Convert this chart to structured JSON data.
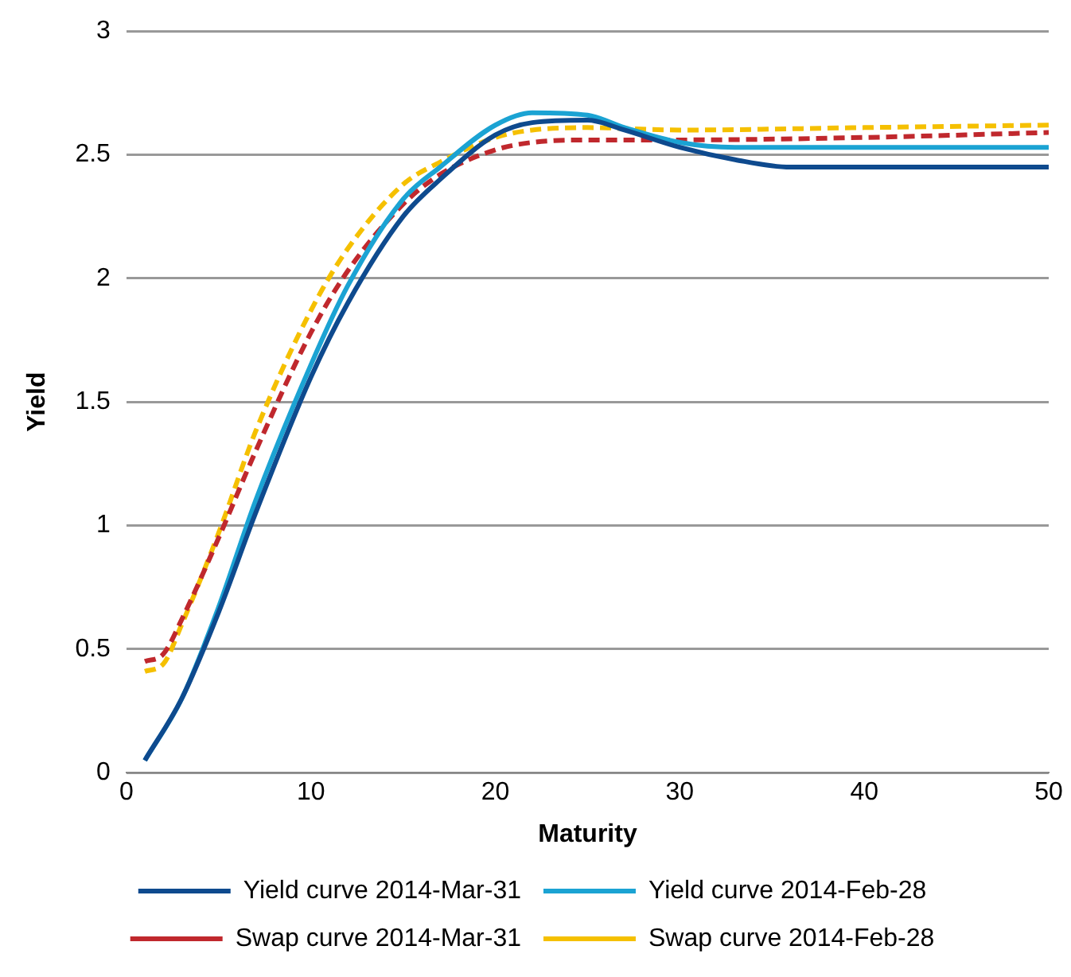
{
  "chart_data": {
    "type": "line",
    "xlabel": "Maturity",
    "ylabel": "Yield",
    "xlim": [
      0,
      50
    ],
    "xticks": [
      0,
      10,
      20,
      30,
      40,
      50
    ],
    "ylim": [
      0,
      3
    ],
    "yticks": [
      0,
      0.5,
      1,
      1.5,
      2,
      2.5,
      3
    ],
    "grid": "y",
    "legend": "bottom",
    "marker": "none",
    "series": [
      {
        "name": "Yield curve 2014-Mar-31",
        "color": "#0e4a8e",
        "line_style": "solid",
        "x": [
          1,
          3,
          5,
          7,
          10,
          12,
          15,
          17,
          20,
          22,
          25,
          27,
          30,
          33,
          36,
          40,
          45,
          50
        ],
        "values": [
          0.05,
          0.3,
          0.65,
          1.05,
          1.6,
          1.9,
          2.25,
          2.4,
          2.58,
          2.63,
          2.64,
          2.6,
          2.53,
          2.48,
          2.45,
          2.45,
          2.45,
          2.45
        ]
      },
      {
        "name": "Yield curve 2014-Feb-28",
        "color": "#1ba3d3",
        "line_style": "solid",
        "x": [
          1,
          3,
          5,
          7,
          10,
          12,
          15,
          17,
          20,
          22,
          25,
          27,
          30,
          33,
          40,
          50
        ],
        "values": [
          0.05,
          0.3,
          0.67,
          1.1,
          1.65,
          1.97,
          2.32,
          2.45,
          2.62,
          2.67,
          2.66,
          2.61,
          2.55,
          2.53,
          2.53,
          2.53
        ]
      },
      {
        "name": "Swap curve 2014-Mar-31",
        "color": "#c0282d",
        "line_style": "dashed",
        "x": [
          1,
          2,
          3,
          5,
          7,
          10,
          12,
          15,
          17,
          20,
          22,
          25,
          30,
          40,
          50
        ],
        "values": [
          0.45,
          0.48,
          0.62,
          0.95,
          1.3,
          1.78,
          2.03,
          2.3,
          2.42,
          2.52,
          2.55,
          2.56,
          2.56,
          2.57,
          2.59
        ]
      },
      {
        "name": "Swap curve 2014-Feb-28",
        "color": "#f5c000",
        "line_style": "dashed",
        "x": [
          1,
          2,
          3,
          5,
          7,
          10,
          12,
          15,
          17,
          20,
          22,
          25,
          30,
          40,
          50
        ],
        "values": [
          0.41,
          0.44,
          0.6,
          0.97,
          1.38,
          1.87,
          2.12,
          2.38,
          2.47,
          2.57,
          2.6,
          2.61,
          2.6,
          2.61,
          2.62
        ]
      }
    ]
  }
}
